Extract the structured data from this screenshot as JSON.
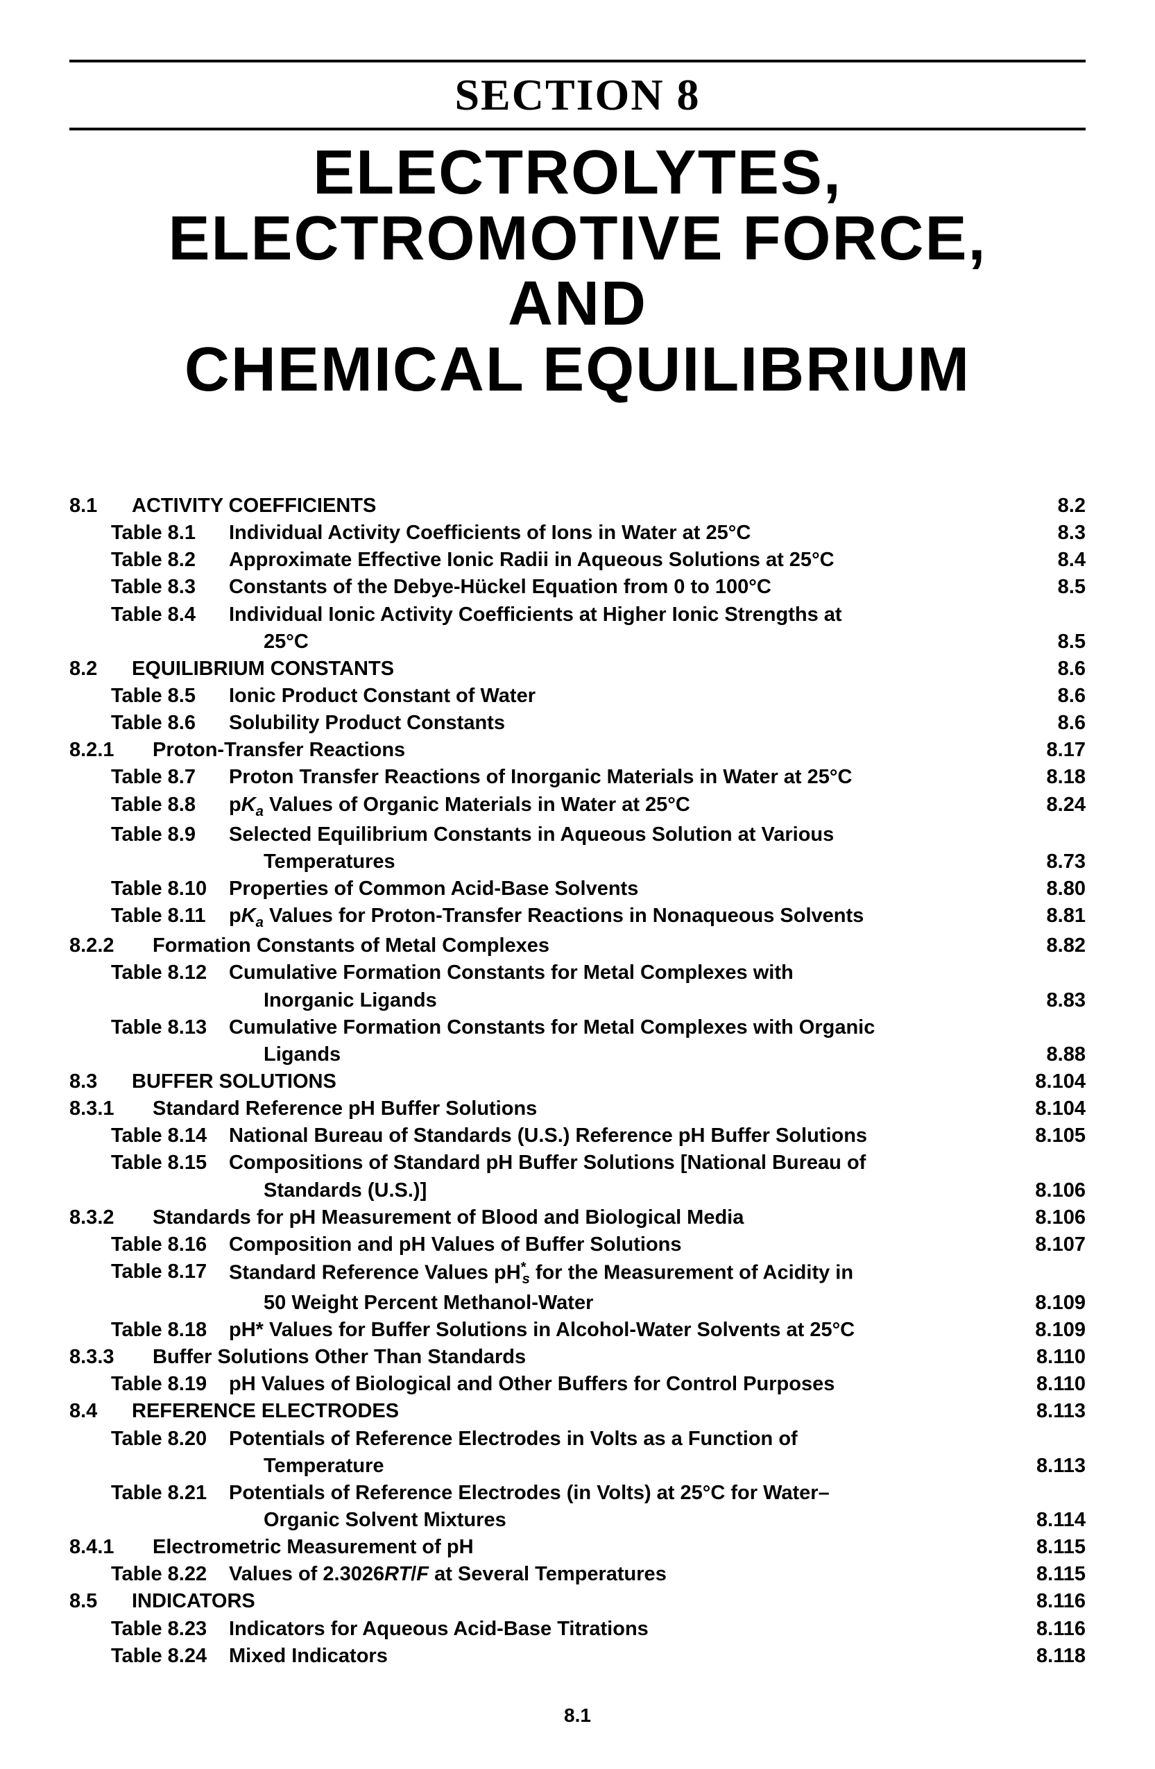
{
  "header": {
    "section_label": "SECTION  8",
    "title_line1": "ELECTROLYTES,",
    "title_line2": "ELECTROMOTIVE  FORCE,",
    "title_line3": "AND",
    "title_line4": "CHEMICAL  EQUILIBRIUM"
  },
  "toc": [
    {
      "type": "section",
      "num": "8.1",
      "text": "ACTIVITY  COEFFICIENTS",
      "page": "8.2"
    },
    {
      "type": "table",
      "label": "Table 8.1",
      "text": "Individual Activity Coefficients of Ions in Water at 25°C",
      "page": "8.3"
    },
    {
      "type": "table",
      "label": "Table 8.2",
      "text": "Approximate Effective Ionic Radii in Aqueous Solutions at 25°C",
      "page": "8.4"
    },
    {
      "type": "table",
      "label": "Table 8.3",
      "text": "Constants of the Debye-Hückel Equation from 0 to 100°C",
      "page": "8.5"
    },
    {
      "type": "table",
      "label": "Table 8.4",
      "text": "Individual Ionic Activity Coefficients at Higher Ionic Strengths at",
      "page": ""
    },
    {
      "type": "cont",
      "text": "25°C",
      "page": "8.5"
    },
    {
      "type": "section",
      "num": "8.2",
      "text": "EQUILIBRIUM  CONSTANTS",
      "page": "8.6"
    },
    {
      "type": "table",
      "label": "Table 8.5",
      "text": "Ionic Product Constant of Water",
      "page": "8.6"
    },
    {
      "type": "table",
      "label": "Table 8.6",
      "text": "Solubility Product Constants",
      "page": "8.6"
    },
    {
      "type": "subsection",
      "num": "8.2.1",
      "text": "Proton-Transfer Reactions",
      "page": "8.17"
    },
    {
      "type": "table",
      "label": "Table 8.7",
      "text": "Proton Transfer Reactions of Inorganic Materials in Water at 25°C",
      "page": "8.18"
    },
    {
      "type": "table_html",
      "label": "Table 8.8",
      "html": "p<span class='ital'>K</span><span class='sub'>a</span> Values of Organic Materials in Water at 25°C",
      "page": "8.24"
    },
    {
      "type": "table",
      "label": "Table 8.9",
      "text": "Selected Equilibrium Constants in Aqueous Solution at Various",
      "page": ""
    },
    {
      "type": "cont",
      "text": "Temperatures",
      "page": "8.73"
    },
    {
      "type": "table",
      "label": "Table 8.10",
      "text": "Properties of Common Acid-Base Solvents",
      "page": "8.80"
    },
    {
      "type": "table_html",
      "label": "Table 8.11",
      "html": "p<span class='ital'>K</span><span class='sub'>a</span> Values for Proton-Transfer Reactions in Nonaqueous Solvents",
      "page": "8.81"
    },
    {
      "type": "subsection",
      "num": "8.2.2",
      "text": "Formation Constants of Metal Complexes",
      "page": "8.82"
    },
    {
      "type": "table",
      "label": "Table 8.12",
      "text": "Cumulative Formation Constants for Metal Complexes with",
      "page": ""
    },
    {
      "type": "cont",
      "text": "Inorganic Ligands",
      "page": "8.83"
    },
    {
      "type": "table",
      "label": "Table 8.13",
      "text": "Cumulative Formation Constants for Metal Complexes with Organic",
      "page": ""
    },
    {
      "type": "cont",
      "text": "Ligands",
      "page": "8.88"
    },
    {
      "type": "section",
      "num": "8.3",
      "text": "BUFFER SOLUTIONS",
      "page": "8.104"
    },
    {
      "type": "subsection",
      "num": "8.3.1",
      "text": "Standard Reference pH Buffer Solutions",
      "page": "8.104"
    },
    {
      "type": "table",
      "label": "Table 8.14",
      "text": "National Bureau of Standards (U.S.) Reference pH Buffer Solutions",
      "page": "8.105"
    },
    {
      "type": "table",
      "label": "Table 8.15",
      "text": "Compositions of Standard pH Buffer Solutions [National Bureau of",
      "page": ""
    },
    {
      "type": "cont",
      "text": "Standards (U.S.)]",
      "page": "8.106"
    },
    {
      "type": "subsection",
      "num": "8.3.2",
      "text": "Standards for pH Measurement of Blood and Biological Media",
      "page": "8.106"
    },
    {
      "type": "table",
      "label": "Table 8.16",
      "text": "Composition and pH Values of Buffer Solutions",
      "page": "8.107"
    },
    {
      "type": "table_html",
      "label": "Table 8.17",
      "html": "Standard Reference Values pH<span class='sup'>*</span><span class='sub' style='margin-left:-6px;'>s</span> for the Measurement of Acidity in",
      "page": ""
    },
    {
      "type": "cont",
      "text": "50 Weight Percent Methanol-Water",
      "page": "8.109"
    },
    {
      "type": "table",
      "label": "Table 8.18",
      "text": "pH* Values for Buffer Solutions in Alcohol-Water Solvents at 25°C",
      "page": "8.109"
    },
    {
      "type": "subsection",
      "num": "8.3.3",
      "text": "Buffer Solutions Other Than Standards",
      "page": "8.110"
    },
    {
      "type": "table",
      "label": "Table 8.19",
      "text": "pH Values of Biological and Other Buffers for Control Purposes",
      "page": "8.110"
    },
    {
      "type": "section",
      "num": "8.4",
      "text": "REFERENCE  ELECTRODES",
      "page": "8.113"
    },
    {
      "type": "table",
      "label": "Table 8.20",
      "text": "Potentials of Reference Electrodes in Volts as a Function of",
      "page": ""
    },
    {
      "type": "cont",
      "text": "Temperature",
      "page": "8.113"
    },
    {
      "type": "table",
      "label": "Table 8.21",
      "text": "Potentials of Reference Electrodes (in Volts) at 25°C for Water–",
      "page": ""
    },
    {
      "type": "cont",
      "text": "Organic Solvent Mixtures",
      "page": "8.114"
    },
    {
      "type": "subsection",
      "num": "8.4.1",
      "text": "Electrometric Measurement of pH",
      "page": "8.115"
    },
    {
      "type": "table_html",
      "label": "Table 8.22",
      "html": "Values of 2.3026<span class='ital'>RT</span>/<span class='ital'>F</span> at Several Temperatures",
      "page": "8.115"
    },
    {
      "type": "section",
      "num": "8.5",
      "text": "INDICATORS",
      "page": "8.116"
    },
    {
      "type": "table",
      "label": "Table 8.23",
      "text": "Indicators for Aqueous Acid-Base Titrations",
      "page": "8.116"
    },
    {
      "type": "table",
      "label": "Table 8.24",
      "text": "Mixed Indicators",
      "page": "8.118"
    }
  ],
  "footer": {
    "page_number": "8.1"
  },
  "style": {
    "page_bg": "#ffffff",
    "text_color": "#000000",
    "rule_color": "#000000",
    "body_font": "Arial, Helvetica, sans-serif",
    "serif_font": "Times New Roman, Times, serif",
    "section_label_fontsize": 64,
    "title_fontsize": 90,
    "toc_fontsize": 29,
    "toc_fontweight": "bold"
  }
}
